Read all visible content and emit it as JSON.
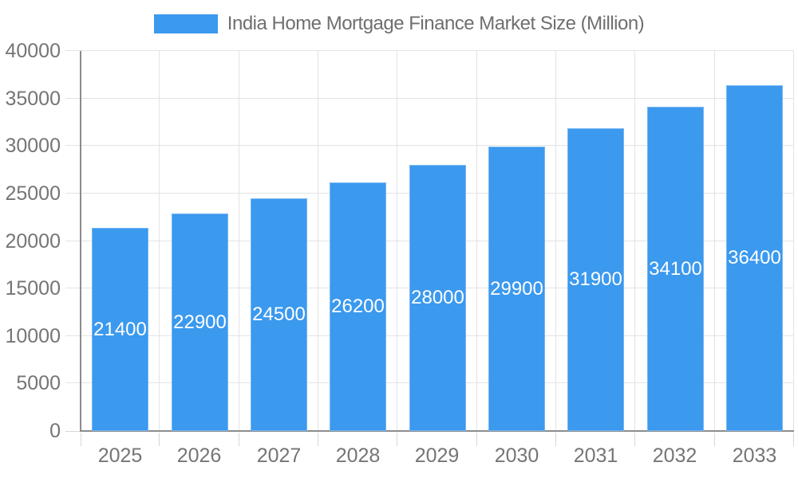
{
  "colors": {
    "background": "#ffffff",
    "bar": "#3B99EE",
    "bar_label": "#ffffff",
    "grid": "#e3e3e3",
    "tick": "#d6d6d6",
    "axis_line": "#8c8c8c",
    "axis_text": "#757575",
    "legend_text": "#6f6f6f"
  },
  "legend": {
    "label": "India Home Mortgage Finance Market Size (Million)"
  },
  "chart_data": {
    "type": "bar",
    "title": "India Home Mortgage Finance Market Size (Million)",
    "categories": [
      "2025",
      "2026",
      "2027",
      "2028",
      "2029",
      "2030",
      "2031",
      "2032",
      "2033"
    ],
    "values": [
      21400,
      22900,
      24500,
      26200,
      28000,
      29900,
      31900,
      34100,
      36400
    ],
    "series": [
      {
        "name": "India Home Mortgage Finance Market Size (Million)",
        "values": [
          21400,
          22900,
          24500,
          26200,
          28000,
          29900,
          31900,
          34100,
          36400
        ]
      }
    ],
    "xlabel": "",
    "ylabel": "",
    "ylim": [
      0,
      40000
    ],
    "y_ticks": [
      0,
      5000,
      10000,
      15000,
      20000,
      25000,
      30000,
      35000,
      40000
    ],
    "grid": "full",
    "legend_position": "top-center",
    "data_labels": "inside-middle-white"
  }
}
